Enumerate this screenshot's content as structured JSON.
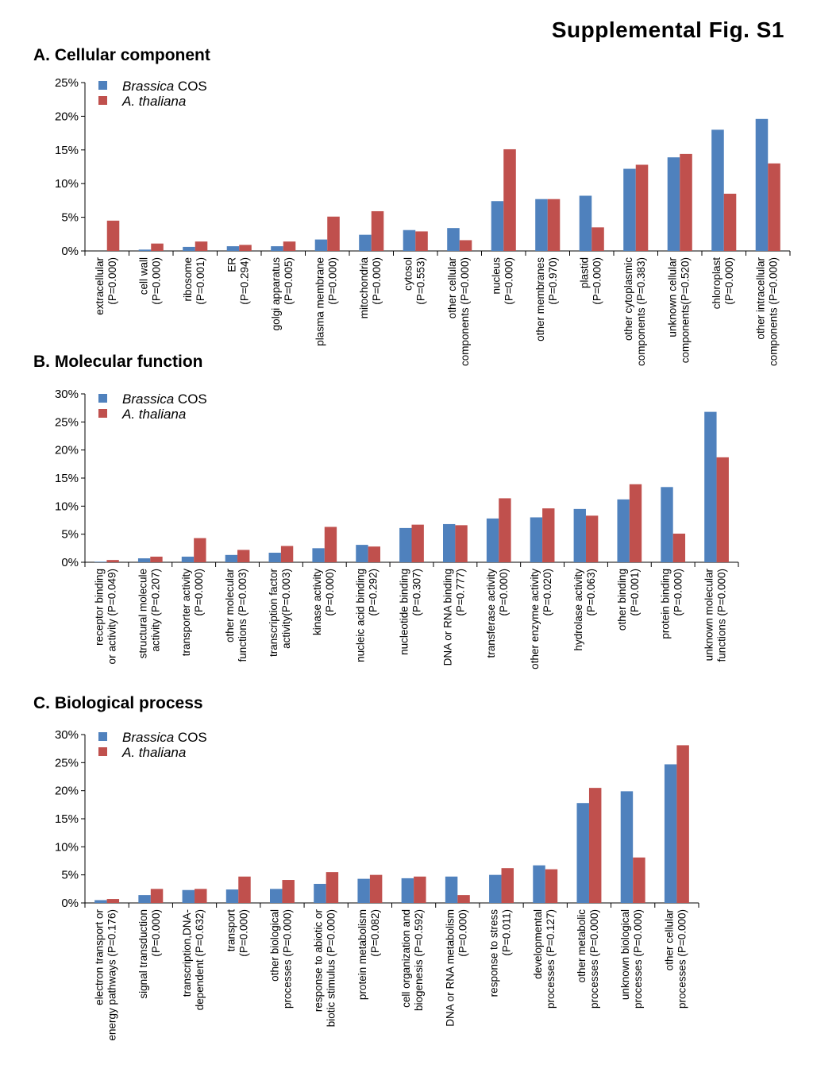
{
  "figure_title": "Supplemental Fig. S1",
  "colors": {
    "brassica": "#4F81BD",
    "thaliana": "#C0504D"
  },
  "legend": {
    "brassica_italic": "Brassica",
    "brassica_rest": " COS",
    "thaliana": "A. thaliana"
  },
  "chart_data": [
    {
      "type": "bar",
      "title": "A. Cellular component",
      "ylim": [
        0,
        25
      ],
      "yticks": [
        "0%",
        "5%",
        "10%",
        "15%",
        "20%",
        "25%"
      ],
      "legend_position": "top-left",
      "categories": [
        [
          "extracellular",
          "(P=0.000)"
        ],
        [
          "cell wall",
          "(P=0.000)"
        ],
        [
          "ribosome",
          "(P=0.001)"
        ],
        [
          "ER",
          "(P=0.294)"
        ],
        [
          "golgi apparatus",
          "(P=0.005)"
        ],
        [
          "plasma membrane",
          "(P=0.000)"
        ],
        [
          "mitochondria",
          "(P=0.000)"
        ],
        [
          "cytosol",
          "(P=0.553)"
        ],
        [
          "other cellular",
          "components (P=0.000)"
        ],
        [
          "nucleus",
          "(P=0.000)"
        ],
        [
          "other membranes",
          "(P=0.970)"
        ],
        [
          "plastid",
          "(P=0.000)"
        ],
        [
          "other cytoplasmic",
          "components (P=0.383)"
        ],
        [
          "unknown cellular",
          "components(P=0.520)"
        ],
        [
          "chloroplast",
          "(P=0.000)"
        ],
        [
          "other intracellular",
          "components (P=0.000)"
        ]
      ],
      "series": [
        {
          "name": "Brassica COS",
          "values": [
            0.0,
            0.2,
            0.6,
            0.7,
            0.7,
            1.7,
            2.4,
            3.1,
            3.4,
            7.4,
            7.7,
            8.2,
            12.2,
            13.9,
            18.0,
            19.6
          ]
        },
        {
          "name": "A. thaliana",
          "values": [
            4.5,
            1.1,
            1.4,
            0.9,
            1.4,
            5.1,
            5.9,
            2.9,
            1.6,
            15.1,
            7.7,
            3.5,
            12.8,
            14.4,
            8.5,
            13.0
          ]
        }
      ]
    },
    {
      "type": "bar",
      "title": "B. Molecular function",
      "ylim": [
        0,
        30
      ],
      "yticks": [
        "0%",
        "5%",
        "10%",
        "15%",
        "20%",
        "25%",
        "30%"
      ],
      "legend_position": "top-left",
      "categories": [
        [
          "receptor binding",
          "or activity (P=0.049)"
        ],
        [
          "structural molecule",
          "activity (P=0.207)"
        ],
        [
          "transporter activity",
          "(P=0.000)"
        ],
        [
          "other molecular",
          "functions (P=0.003)"
        ],
        [
          "transcription factor",
          "activity(P=0.003)"
        ],
        [
          "kinase activity",
          "(P=0.000)"
        ],
        [
          "nucleic acid binding",
          "(P=0.292)"
        ],
        [
          "nucleotide binding",
          "(P=0.307)"
        ],
        [
          "DNA or RNA binding",
          "(P=0.777)"
        ],
        [
          "transferase activity",
          "(P=0.000)"
        ],
        [
          "other enzyme activity",
          "(P=0.020)"
        ],
        [
          "hydrolase activity",
          "(P=0.063)"
        ],
        [
          "other binding",
          "(P=0.001)"
        ],
        [
          "protein binding",
          "(P=0.000)"
        ],
        [
          "unknown molecular",
          "functions (P=0.000)"
        ]
      ],
      "series": [
        {
          "name": "Brassica COS",
          "values": [
            0.1,
            0.7,
            1.0,
            1.3,
            1.7,
            2.5,
            3.1,
            6.1,
            6.8,
            7.8,
            8.0,
            9.5,
            11.2,
            13.4,
            26.8
          ]
        },
        {
          "name": "A. thaliana",
          "values": [
            0.4,
            1.0,
            4.3,
            2.2,
            2.9,
            6.3,
            2.8,
            6.7,
            6.6,
            11.4,
            9.6,
            8.3,
            13.9,
            5.1,
            18.7
          ]
        }
      ]
    },
    {
      "type": "bar",
      "title": "C. Biological process",
      "ylim": [
        0,
        30
      ],
      "yticks": [
        "0%",
        "5%",
        "10%",
        "15%",
        "20%",
        "25%",
        "30%"
      ],
      "legend_position": "top-left",
      "categories": [
        [
          "electron transport or",
          "energy pathways (P=0.176)"
        ],
        [
          "signal transduction",
          "(P=0.000)"
        ],
        [
          "transcription,DNA-",
          "dependent (P=0.632)"
        ],
        [
          "transport",
          "(P=0.000)"
        ],
        [
          "other biological",
          "processes (P=0.000)"
        ],
        [
          "response to abiotic or",
          "biotic stimulus (P=0.000)"
        ],
        [
          "protein metabolism",
          "(P=0.082)"
        ],
        [
          "cell organization and",
          "biogenesis (P=0.592)"
        ],
        [
          "DNA or RNA metabolism",
          "(P=0.000)"
        ],
        [
          "response to stress",
          "(P=0.011)"
        ],
        [
          "developmental",
          "processes (P=0.127)"
        ],
        [
          "other metabolic",
          "processes (P=0.000)"
        ],
        [
          "unknown biological",
          "processes (P=0.000)"
        ],
        [
          "other cellular",
          "processes (P=0.000)"
        ]
      ],
      "series": [
        {
          "name": "Brassica COS",
          "values": [
            0.5,
            1.4,
            2.3,
            2.4,
            2.5,
            3.4,
            4.3,
            4.4,
            4.7,
            5.0,
            6.7,
            17.8,
            19.9,
            24.7
          ]
        },
        {
          "name": "A. thaliana",
          "values": [
            0.7,
            2.5,
            2.5,
            4.7,
            4.1,
            5.5,
            5.0,
            4.7,
            1.4,
            6.2,
            6.0,
            20.5,
            8.1,
            28.1
          ]
        }
      ]
    }
  ]
}
